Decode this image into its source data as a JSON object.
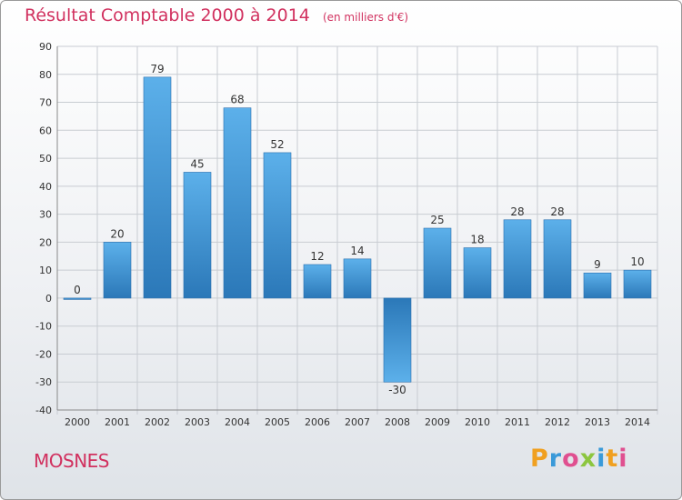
{
  "chart_data": {
    "type": "bar",
    "title": "Résultat Comptable 2000 à 2014",
    "subtitle": "(en milliers d'€)",
    "categories": [
      "2000",
      "2001",
      "2002",
      "2003",
      "2004",
      "2005",
      "2006",
      "2007",
      "2008",
      "2009",
      "2010",
      "2011",
      "2012",
      "2013",
      "2014"
    ],
    "values": [
      0,
      20,
      79,
      45,
      68,
      52,
      12,
      14,
      -30,
      25,
      18,
      28,
      28,
      9,
      10
    ],
    "ylim": [
      -40,
      90
    ],
    "yticks": [
      90,
      80,
      70,
      60,
      50,
      40,
      30,
      20,
      10,
      0,
      -10,
      -20,
      -30,
      -40
    ],
    "xlabel": "",
    "ylabel": "",
    "grid": true,
    "bar_color": "#3d8fd4"
  },
  "commune": "MOSNES",
  "brand": {
    "letters": [
      "P",
      "r",
      "o",
      "x",
      "i",
      "t",
      "i"
    ],
    "colors": [
      "#f0a020",
      "#3a9ad9",
      "#e05090",
      "#8cc63f",
      "#3a9ad9",
      "#f0a020",
      "#e05090"
    ]
  },
  "colors": {
    "title": "#d1315f",
    "grid": "#c8ccd2",
    "axis_text": "#333333"
  }
}
